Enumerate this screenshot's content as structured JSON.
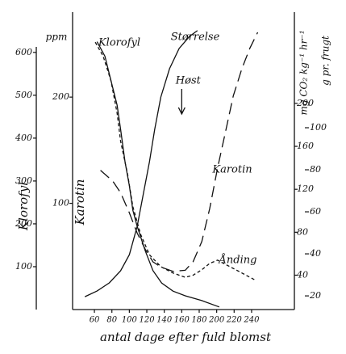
{
  "chart_data": {
    "type": "line",
    "x_label": "antal dage efter fuld blomst",
    "xlim": [
      35,
      289
    ],
    "xticks": [
      60,
      80,
      100,
      120,
      140,
      160,
      180,
      200,
      220,
      240
    ],
    "y_unit": "ppm",
    "y_label": "Klorofyl",
    "ylim": [
      0,
      694
    ],
    "yticks": [
      100,
      200,
      300,
      400,
      500,
      600
    ],
    "y2_label": "Karotin",
    "y2lim": [
      0,
      280
    ],
    "y2ticks": [
      100,
      200
    ],
    "y3_label": "mg CO₂ kg⁻¹ hr⁻¹",
    "y3lim": [
      8,
      285
    ],
    "y3ticks": [
      40,
      80,
      120,
      160,
      200
    ],
    "y4_label": "g pr. frugt",
    "y4lim": [
      13.5,
      155
    ],
    "y4ticks": [
      20,
      40,
      60,
      80,
      100
    ],
    "color": "#111111",
    "annotation": "Høst",
    "annotation_x": 160,
    "series": [
      {
        "name": "Klorofyl",
        "axis": "y",
        "dash": "solid",
        "x": [
          63,
          72,
          79,
          86,
          90,
          95,
          100,
          104,
          109,
          118,
          127,
          137,
          150,
          164,
          183,
          203
        ],
        "values": [
          625,
          591,
          534,
          477,
          421,
          345,
          289,
          232,
          194,
          138,
          91,
          62,
          43,
          32,
          21,
          6
        ]
      },
      {
        "name": "Størrelse",
        "axis": "y4",
        "dash": "solid",
        "x": [
          49,
          63,
          77,
          90,
          100,
          109,
          116,
          123,
          129,
          136,
          146,
          157,
          169,
          178
        ],
        "values": [
          19.6,
          22.3,
          26.2,
          31.9,
          39.6,
          53.1,
          68.5,
          83.8,
          99.2,
          114.6,
          128.1,
          137.7,
          143.5,
          146.2
        ]
      },
      {
        "name": "Karotin",
        "axis": "y2",
        "dash": "long",
        "x": [
          67,
          81,
          90,
          100,
          109,
          118,
          127,
          136,
          150,
          164,
          173,
          183,
          192,
          201,
          210,
          219,
          229,
          238,
          247
        ],
        "values": [
          131,
          121,
          110,
          91,
          72,
          57,
          45,
          40,
          36,
          37,
          45,
          64,
          95,
          133,
          167,
          201,
          227,
          246,
          261
        ]
      },
      {
        "name": "Ånding",
        "axis": "y3",
        "dash": "short",
        "x": [
          61,
          70,
          79,
          86,
          90,
          98,
          104,
          113,
          123,
          136,
          150,
          164,
          173,
          183,
          192,
          201,
          215,
          229,
          245
        ],
        "values": [
          257,
          244,
          221,
          191,
          165,
          134,
          104,
          78,
          59,
          48,
          42,
          38,
          40,
          45,
          51,
          54,
          48,
          42,
          35
        ]
      }
    ]
  }
}
